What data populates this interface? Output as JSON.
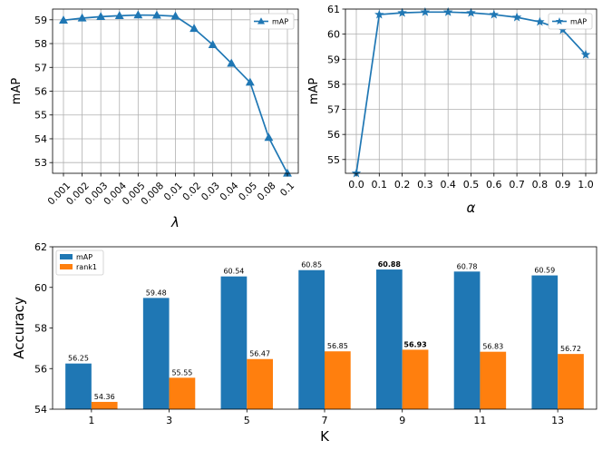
{
  "chart_data": [
    {
      "type": "line",
      "x": [
        "0.001",
        "0.002",
        "0.003",
        "0.004",
        "0.005",
        "0.008",
        "0.01",
        "0.02",
        "0.03",
        "0.04",
        "0.05",
        "0.08",
        "0.1"
      ],
      "series": [
        {
          "name": "mAP",
          "values": [
            58.98,
            59.07,
            59.13,
            59.17,
            59.2,
            59.19,
            59.15,
            58.63,
            57.95,
            57.17,
            56.37,
            54.05,
            52.55
          ],
          "color": "#1f77b4",
          "marker": "triangle"
        }
      ],
      "xlabel": "λ",
      "ylabel": "mAP",
      "ylim": [
        52.55,
        59.45
      ],
      "yticks": [
        "53",
        "54",
        "55",
        "56",
        "57",
        "58",
        "59"
      ],
      "grid": true,
      "legend_position": "top-right"
    },
    {
      "type": "line",
      "x": [
        "0.0",
        "0.1",
        "0.2",
        "0.3",
        "0.4",
        "0.5",
        "0.6",
        "0.7",
        "0.8",
        "0.9",
        "1.0"
      ],
      "series": [
        {
          "name": "mAP",
          "values": [
            54.45,
            60.78,
            60.85,
            60.88,
            60.88,
            60.85,
            60.78,
            60.67,
            60.49,
            60.17,
            59.18
          ],
          "color": "#1f77b4",
          "marker": "star"
        }
      ],
      "xlabel": "α",
      "ylabel": "mAP",
      "ylim": [
        54.45,
        61.0
      ],
      "yticks": [
        "55",
        "56",
        "57",
        "58",
        "59",
        "60",
        "61"
      ],
      "grid": true,
      "legend_position": "top-right"
    },
    {
      "type": "bar",
      "categories": [
        "1",
        "3",
        "5",
        "7",
        "9",
        "11",
        "13"
      ],
      "series": [
        {
          "name": "mAP",
          "values": [
            56.25,
            59.48,
            60.54,
            60.85,
            60.88,
            60.78,
            60.59
          ],
          "labels": [
            "56.25",
            "59.48",
            "60.54",
            "60.85",
            "60.88",
            "60.78",
            "60.59"
          ],
          "color": "#1f77b4"
        },
        {
          "name": "rank1",
          "values": [
            54.36,
            55.55,
            56.47,
            56.85,
            56.93,
            56.83,
            56.72
          ],
          "labels": [
            "54.36",
            "55.55",
            "56.47",
            "56.85",
            "56.93",
            "56.83",
            "56.72"
          ],
          "color": "#ff7f0e"
        }
      ],
      "bold_category": "9",
      "xlabel": "K",
      "ylabel": "Accuracy",
      "ylim": [
        54,
        62
      ],
      "yticks": [
        "54",
        "56",
        "58",
        "60",
        "62"
      ],
      "grid": false,
      "legend_position": "top-left"
    }
  ]
}
